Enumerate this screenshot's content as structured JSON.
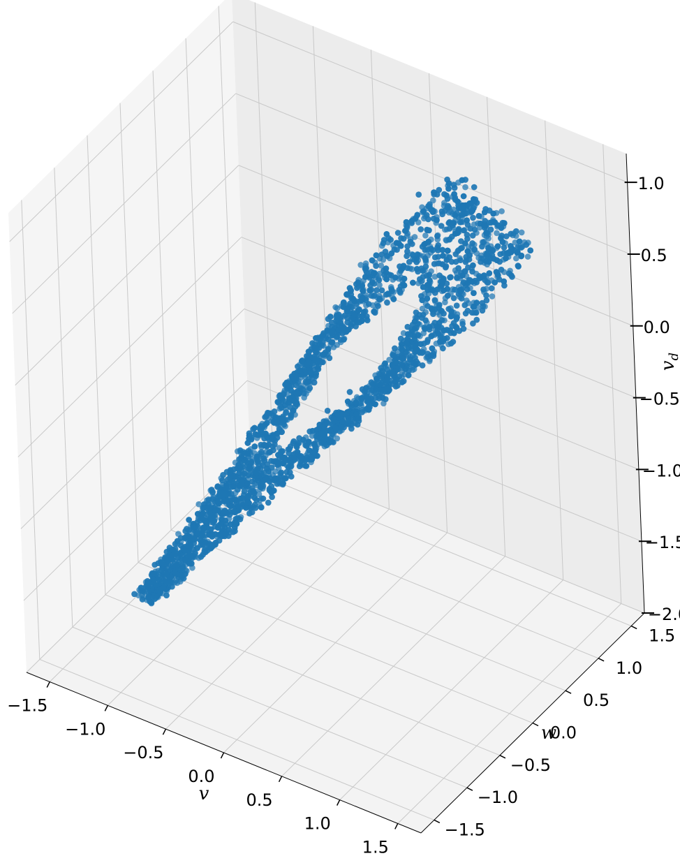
{
  "chart_data": {
    "type": "scatter",
    "projection": "3d",
    "marker_color": "#1f77b4",
    "title": "",
    "grid": true,
    "pane_colors": {
      "back_right": "#ececec",
      "back_left": "#f5f5f5",
      "floor": "#f3f3f3"
    },
    "x_axis": {
      "label": "v",
      "lim": [
        -1.7,
        1.7
      ],
      "ticks": [
        "−1.5",
        "−1.0",
        "−0.5",
        "0.0",
        "0.5",
        "1.0",
        "1.5"
      ]
    },
    "y_axis": {
      "label": "w",
      "lim": [
        -1.7,
        1.7
      ],
      "ticks": [
        "−1.5",
        "−1.0",
        "−0.5",
        "0.0",
        "0.5",
        "1.0",
        "1.5"
      ]
    },
    "z_axis": {
      "label": "v",
      "label_subscript": "d",
      "lim": [
        -2.0,
        1.2
      ],
      "ticks": [
        "−2.0",
        "−1.5",
        "−1.0",
        "−0.5",
        "0.0",
        "0.5",
        "1.0"
      ]
    },
    "description_of_points": "Dense point cloud forming a slanted loop (limit-cycle like torus) stretching from a tip near v≈-1.6, w≈0, v_d≈-1.8 up to a rounded head near v≈0.9, w≈0.9, v_d≈0.7, with a hollow inner opening.",
    "n_points": 4500
  }
}
